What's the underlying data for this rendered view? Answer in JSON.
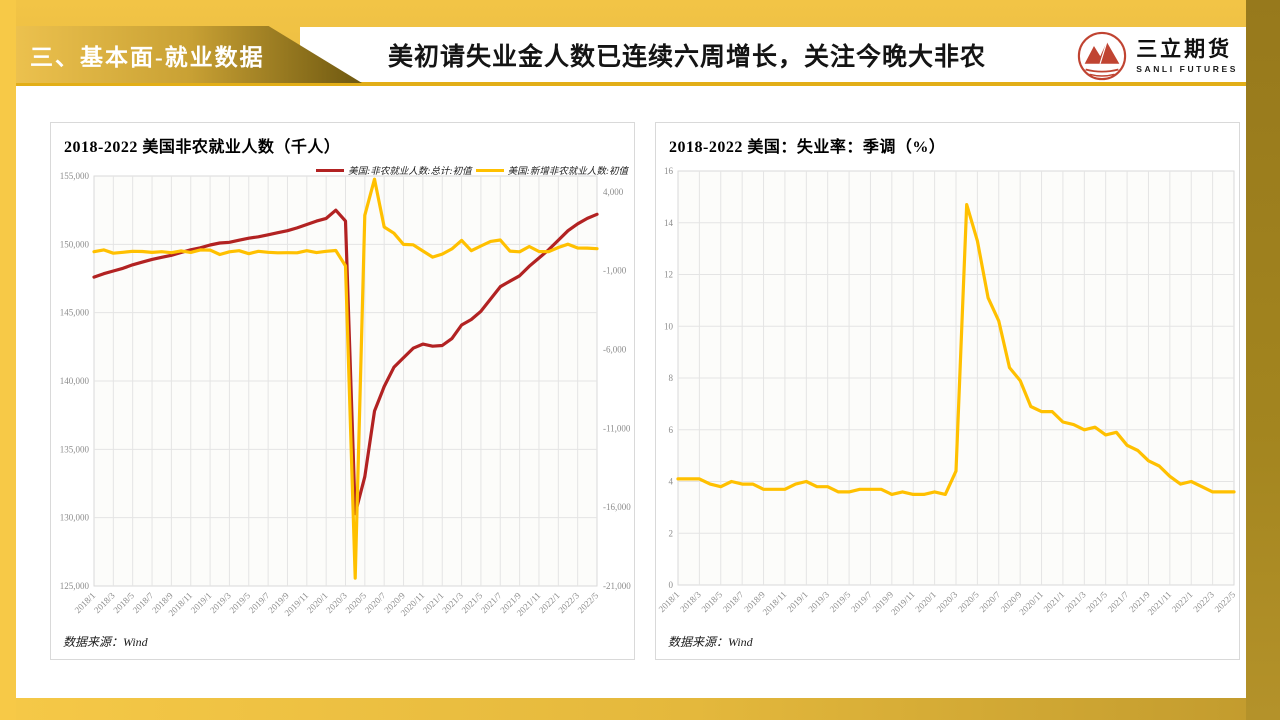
{
  "page": {
    "section_label": "三、基本面-就业数据",
    "headline": "美初请失业金人数已连续六周增长，关注今晚大非农",
    "logo": {
      "name_cn": "三立期货",
      "name_en": "SANLI FUTURES"
    }
  },
  "colors": {
    "frame_gold": "#F0C246",
    "band_olive": "#9A7D20",
    "rule_gold": "#E2AE17",
    "series_red": "#B22222",
    "series_yellow": "#FFC000",
    "grid": "#E4E4E4",
    "tick_text": "#8C8C8C"
  },
  "chart_data": [
    {
      "type": "line",
      "title": "2018-2022 美国非农就业人数（千人）",
      "source": "数据来源：Wind",
      "x_tick_every": 2,
      "x": [
        "2018/1",
        "2018/2",
        "2018/3",
        "2018/4",
        "2018/5",
        "2018/6",
        "2018/7",
        "2018/8",
        "2018/9",
        "2018/10",
        "2018/11",
        "2018/12",
        "2019/1",
        "2019/2",
        "2019/3",
        "2019/4",
        "2019/5",
        "2019/6",
        "2019/7",
        "2019/8",
        "2019/9",
        "2019/10",
        "2019/11",
        "2019/12",
        "2020/1",
        "2020/2",
        "2020/3",
        "2020/4",
        "2020/5",
        "2020/6",
        "2020/7",
        "2020/8",
        "2020/9",
        "2020/10",
        "2020/11",
        "2020/12",
        "2021/1",
        "2021/2",
        "2021/3",
        "2021/4",
        "2021/5",
        "2021/6",
        "2021/7",
        "2021/8",
        "2021/9",
        "2021/10",
        "2021/11",
        "2021/12",
        "2022/1",
        "2022/2",
        "2022/3",
        "2022/4",
        "2022/5"
      ],
      "left_axis": {
        "min": 125000,
        "max": 155000,
        "step": 5000
      },
      "right_axis": {
        "min": -21000,
        "max": 5000,
        "ticks": [
          4000,
          -1000,
          -6000,
          -11000,
          -16000,
          -21000
        ]
      },
      "legend_position": "top-right",
      "grid": true,
      "series": [
        {
          "name": "美国:非农就业人数:总计:初值",
          "color": "#B22222",
          "axis": "left",
          "values": [
            147600,
            147850,
            148050,
            148250,
            148500,
            148700,
            148900,
            149050,
            149200,
            149400,
            149600,
            149750,
            149950,
            150100,
            150150,
            150300,
            150450,
            150550,
            150700,
            150850,
            151000,
            151200,
            151450,
            151700,
            151900,
            152500,
            151700,
            130300,
            133000,
            137800,
            139600,
            141000,
            141700,
            142400,
            142700,
            142550,
            142600,
            143100,
            144100,
            144500,
            145100,
            146000,
            146900,
            147300,
            147700,
            148400,
            149000,
            149600,
            150300,
            151000,
            151500,
            151900,
            152200
          ]
        },
        {
          "name": "美国:新增非农就业人数:初值",
          "color": "#FFC000",
          "axis": "right",
          "values": [
            200,
            313,
            103,
            164,
            223,
            213,
            157,
            201,
            134,
            250,
            155,
            312,
            304,
            20,
            196,
            263,
            75,
            224,
            164,
            130,
            136,
            128,
            266,
            145,
            225,
            273,
            -701,
            -20500,
            2509,
            4800,
            1763,
            1371,
            661,
            638,
            245,
            -140,
            49,
            379,
            916,
            266,
            559,
            850,
            943,
            235,
            194,
            531,
            210,
            199,
            467,
            678,
            431,
            428,
            390
          ]
        }
      ]
    },
    {
      "type": "line",
      "title": "2018-2022 美国：失业率：季调（%）",
      "source": "数据来源：Wind",
      "x_tick_every": 2,
      "x": [
        "2018/1",
        "2018/2",
        "2018/3",
        "2018/4",
        "2018/5",
        "2018/6",
        "2018/7",
        "2018/8",
        "2018/9",
        "2018/10",
        "2018/11",
        "2018/12",
        "2019/1",
        "2019/2",
        "2019/3",
        "2019/4",
        "2019/5",
        "2019/6",
        "2019/7",
        "2019/8",
        "2019/9",
        "2019/10",
        "2019/11",
        "2019/12",
        "2020/1",
        "2020/2",
        "2020/3",
        "2020/4",
        "2020/5",
        "2020/6",
        "2020/7",
        "2020/8",
        "2020/9",
        "2020/10",
        "2020/11",
        "2020/12",
        "2021/1",
        "2021/2",
        "2021/3",
        "2021/4",
        "2021/5",
        "2021/6",
        "2021/7",
        "2021/8",
        "2021/9",
        "2021/10",
        "2021/11",
        "2021/12",
        "2022/1",
        "2022/2",
        "2022/3",
        "2022/4",
        "2022/5"
      ],
      "left_axis": {
        "min": 0,
        "max": 16,
        "step": 2
      },
      "grid": true,
      "series": [
        {
          "name": "美国:失业率:季调",
          "color": "#FFC000",
          "axis": "left",
          "values": [
            4.1,
            4.1,
            4.1,
            3.9,
            3.8,
            4.0,
            3.9,
            3.9,
            3.7,
            3.7,
            3.7,
            3.9,
            4.0,
            3.8,
            3.8,
            3.6,
            3.6,
            3.7,
            3.7,
            3.7,
            3.5,
            3.6,
            3.5,
            3.5,
            3.6,
            3.5,
            4.4,
            14.7,
            13.3,
            11.1,
            10.2,
            8.4,
            7.9,
            6.9,
            6.7,
            6.7,
            6.3,
            6.2,
            6.0,
            6.1,
            5.8,
            5.9,
            5.4,
            5.2,
            4.8,
            4.6,
            4.2,
            3.9,
            4.0,
            3.8,
            3.6,
            3.6,
            3.6
          ]
        }
      ]
    }
  ]
}
